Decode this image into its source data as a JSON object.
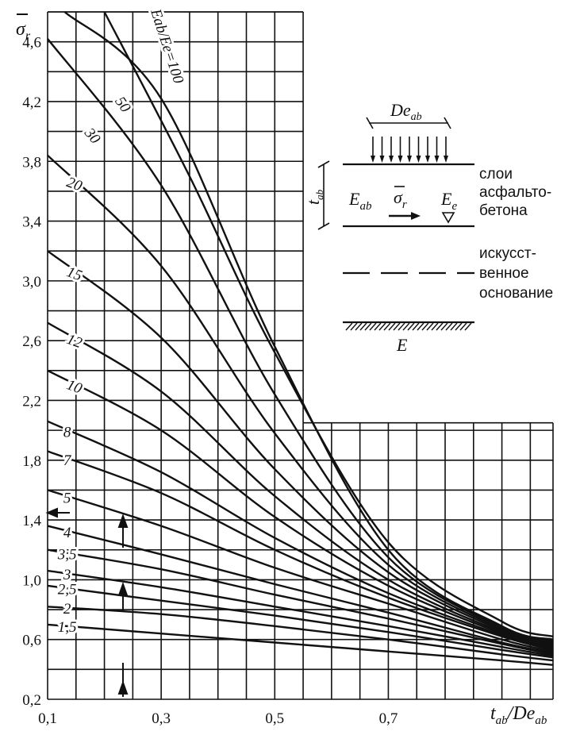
{
  "chart_data": {
    "type": "line",
    "xlabel": "t_ab/D_eab",
    "ylabel": "σr",
    "xlim": [
      0.1,
      0.99
    ],
    "ylim": [
      0.2,
      4.8
    ],
    "x_ticks": [
      "0,1",
      "0,3",
      "0,5",
      "0,7"
    ],
    "y_ticks": [
      "0,2",
      "0,6",
      "1,0",
      "1,4",
      "1,8",
      "2,2",
      "2,6",
      "3,0",
      "3,4",
      "3,8",
      "4,2",
      "4,6"
    ],
    "legend_title": "Eab/Ee",
    "series": [
      {
        "name": "1,5",
        "label": "1,5",
        "x": [
          0.1,
          0.3,
          0.5,
          0.7,
          0.9,
          0.99
        ],
        "y": [
          0.7,
          0.64,
          0.58,
          0.52,
          0.46,
          0.43
        ]
      },
      {
        "name": "2",
        "label": "2",
        "x": [
          0.1,
          0.3,
          0.5,
          0.7,
          0.9,
          0.99
        ],
        "y": [
          0.82,
          0.77,
          0.69,
          0.6,
          0.5,
          0.46
        ]
      },
      {
        "name": "2,5",
        "label": "2,5",
        "x": [
          0.1,
          0.3,
          0.5,
          0.7,
          0.9,
          0.99
        ],
        "y": [
          0.96,
          0.86,
          0.76,
          0.65,
          0.53,
          0.48
        ]
      },
      {
        "name": "3",
        "label": "3",
        "x": [
          0.1,
          0.3,
          0.5,
          0.7,
          0.9,
          0.99
        ],
        "y": [
          1.06,
          0.95,
          0.82,
          0.69,
          0.55,
          0.49
        ]
      },
      {
        "name": "3,5",
        "label": "3,5",
        "x": [
          0.1,
          0.3,
          0.5,
          0.7,
          0.9,
          0.99
        ],
        "y": [
          1.2,
          1.07,
          0.9,
          0.74,
          0.57,
          0.5
        ]
      },
      {
        "name": "4",
        "label": "4",
        "x": [
          0.1,
          0.3,
          0.5,
          0.7,
          0.9,
          0.99
        ],
        "y": [
          1.36,
          1.17,
          0.97,
          0.78,
          0.58,
          0.51
        ]
      },
      {
        "name": "5",
        "label": "5",
        "x": [
          0.1,
          0.3,
          0.5,
          0.7,
          0.9,
          0.99
        ],
        "y": [
          1.6,
          1.36,
          1.08,
          0.84,
          0.6,
          0.52
        ]
      },
      {
        "name": "7",
        "label": "7",
        "x": [
          0.1,
          0.3,
          0.5,
          0.7,
          0.9,
          0.99
        ],
        "y": [
          1.86,
          1.58,
          1.2,
          0.88,
          0.62,
          0.53
        ]
      },
      {
        "name": "8",
        "label": "8",
        "x": [
          0.1,
          0.3,
          0.5,
          0.7,
          0.9,
          0.99
        ],
        "y": [
          2.06,
          1.72,
          1.28,
          0.91,
          0.63,
          0.54
        ]
      },
      {
        "name": "10",
        "label": "10",
        "x": [
          0.1,
          0.3,
          0.5,
          0.7,
          0.9,
          0.99
        ],
        "y": [
          2.4,
          2.0,
          1.42,
          0.96,
          0.64,
          0.55
        ]
      },
      {
        "name": "12",
        "label": "12",
        "x": [
          0.1,
          0.3,
          0.5,
          0.7,
          0.9,
          0.99
        ],
        "y": [
          2.72,
          2.26,
          1.56,
          1.0,
          0.65,
          0.56
        ]
      },
      {
        "name": "15",
        "label": "15",
        "x": [
          0.1,
          0.3,
          0.5,
          0.7,
          0.9,
          0.99
        ],
        "y": [
          3.2,
          2.62,
          1.74,
          1.05,
          0.66,
          0.57
        ]
      },
      {
        "name": "20",
        "label": "20",
        "x": [
          0.1,
          0.3,
          0.5,
          0.7,
          0.9,
          0.99
        ],
        "y": [
          3.84,
          3.1,
          1.98,
          1.1,
          0.67,
          0.58
        ]
      },
      {
        "name": "30",
        "label": "30",
        "x": [
          0.1,
          0.3,
          0.5,
          0.7,
          0.9,
          0.99
        ],
        "y": [
          4.62,
          3.64,
          2.24,
          1.15,
          0.68,
          0.59
        ]
      },
      {
        "name": "50",
        "label": "50",
        "x": [
          0.13,
          0.3,
          0.5,
          0.7,
          0.9,
          0.99
        ],
        "y": [
          4.8,
          4.22,
          2.56,
          1.2,
          0.69,
          0.6
        ]
      },
      {
        "name": "100",
        "label": "Eab/Ee=100",
        "x": [
          0.2,
          0.35,
          0.5,
          0.7,
          0.9,
          0.99
        ],
        "y": [
          4.8,
          3.7,
          2.52,
          1.25,
          0.72,
          0.62
        ]
      }
    ]
  },
  "legend_diagram": {
    "load_width_label": "De",
    "load_width_sub": "ab",
    "thickness_label": "t",
    "thickness_sub": "ab",
    "layer_modulus": "E",
    "layer_modulus_sub": "ab",
    "stress_symbol": "σ",
    "stress_sub": "r",
    "equiv_modulus": "E",
    "equiv_modulus_sub": "e",
    "base_modulus": "E",
    "asphalt_lines": [
      "слои",
      "асфальто-",
      "бетона"
    ],
    "base_lines": [
      "искусст-",
      "венное",
      "основание"
    ]
  }
}
